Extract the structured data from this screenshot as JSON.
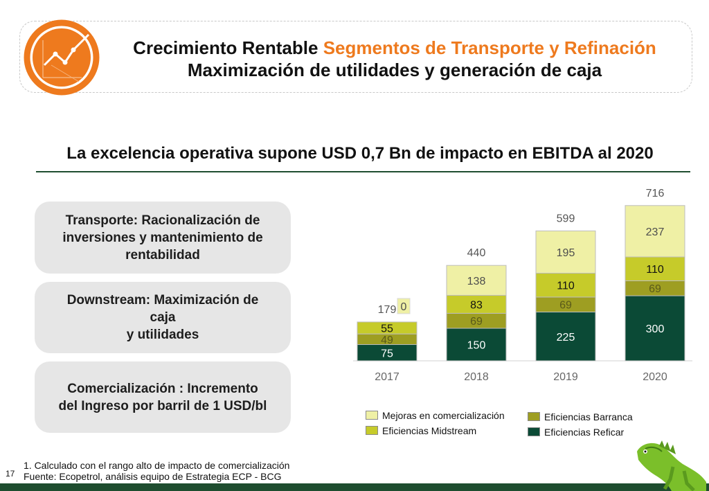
{
  "header": {
    "title_part1": "Crecimiento Rentable ",
    "title_part2": "Segmentos de Transporte y Refinación",
    "title_line2": "Maximización de utilidades y generación de caja",
    "accent_color": "#ee7a1e"
  },
  "subtitle": "La excelencia operativa supone USD 0,7 Bn de impacto en EBITDA  al 2020",
  "cards": [
    {
      "text": "Transporte: Racionalización de\ninversiones y mantenimiento de\nrentabilidad"
    },
    {
      "text": "Downstream: Maximización de\ncaja\ny utilidades"
    },
    {
      "text": "Comercialización : Incremento\ndel Ingreso por barril de 1 USD/bl"
    }
  ],
  "chart_data": {
    "type": "bar",
    "stacked": true,
    "categories": [
      "2017",
      "2018",
      "2019",
      "2020"
    ],
    "series": [
      {
        "name": "Eficiencias Reficar",
        "values": [
          75,
          150,
          225,
          300
        ],
        "color": "#0b4a36",
        "label_color": "#ffffff"
      },
      {
        "name": "Eficiencias Barranca",
        "values": [
          49,
          69,
          69,
          69
        ],
        "color": "#9e9e22",
        "label_color": "#5a5a1a"
      },
      {
        "name": "Eficiencias Midstream",
        "values": [
          55,
          83,
          110,
          110
        ],
        "color": "#c6cb2a",
        "label_color": "#111111"
      },
      {
        "name": "Mejoras en comercialización",
        "values": [
          0,
          138,
          195,
          237
        ],
        "color": "#eff0a5",
        "label_color": "#4d4d4d"
      }
    ],
    "totals": [
      179,
      440,
      599,
      716
    ],
    "ylim": [
      0,
      760
    ],
    "grid": false,
    "legend_position": "bottom"
  },
  "legend": {
    "items": [
      {
        "label": "Mejoras en comercialización",
        "color": "#eff0a5"
      },
      {
        "label": "Eficiencias Midstream",
        "color": "#c6cb2a"
      },
      {
        "label": "Eficiencias Barranca",
        "color": "#9e9e22"
      },
      {
        "label": "Eficiencias Reficar",
        "color": "#0b4a36"
      }
    ]
  },
  "footer": {
    "note1": "1. Calculado con el rango alto de impacto de comercialización",
    "note2": "Fuente: Ecopetrol, análisis equipo de Estrategia ECP - BCG",
    "page_number": "17"
  },
  "colors": {
    "dark_green": "#1e4d2f",
    "card_bg": "#e6e6e6"
  }
}
